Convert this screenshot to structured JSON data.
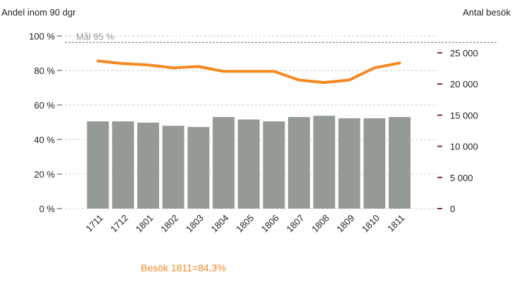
{
  "chart_data": {
    "type": "bar",
    "left_axis_title": "Andel inom 90 dgr",
    "right_axis_title": "Antal besök",
    "categories": [
      "1711",
      "1712",
      "1801",
      "1802",
      "1803",
      "1804",
      "1805",
      "1806",
      "1807",
      "1808",
      "1809",
      "1810",
      "1811"
    ],
    "left_ticks": [
      "0 %",
      "20 %",
      "40 %",
      "60 %",
      "80 %",
      "100 %"
    ],
    "left_tick_values": [
      0,
      20,
      40,
      60,
      80,
      100
    ],
    "right_ticks": [
      "0",
      "5 000",
      "10 000",
      "15 000",
      "20 000",
      "25 000"
    ],
    "right_tick_values": [
      0,
      5000,
      10000,
      15000,
      20000,
      25000
    ],
    "left_range": [
      0,
      100
    ],
    "right_range": [
      0,
      27500
    ],
    "series": [
      {
        "type": "bar",
        "axis": "right",
        "color": "#949A94",
        "values": [
          14000,
          14000,
          13800,
          13300,
          13100,
          14700,
          14300,
          14000,
          14700,
          14900,
          14500,
          14500,
          14700
        ]
      },
      {
        "type": "line",
        "axis": "left",
        "color": "#F5891F",
        "values": [
          85.5,
          84.0,
          83.2,
          81.5,
          82.3,
          79.5,
          79.5,
          79.5,
          74.5,
          73.0,
          74.5,
          81.5,
          84.3
        ]
      }
    ],
    "goal_line": {
      "value": 95,
      "label": "Mål 95 %"
    },
    "annotation": "Besök 1811=84,3%",
    "annotation_color": "#F5891F",
    "grid": true,
    "legend": "none"
  }
}
